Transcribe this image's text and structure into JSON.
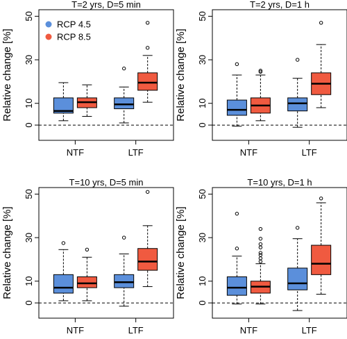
{
  "colors": {
    "rcp45": "#5b8fdb",
    "rcp85": "#f05a40",
    "median": "#000000",
    "zero_line": "#000000"
  },
  "legend": [
    {
      "name": "RCP 4.5",
      "color": "#5b8fdb"
    },
    {
      "name": "RCP 8.5",
      "color": "#f05a40"
    }
  ],
  "chart_data": [
    {
      "type": "boxplot",
      "title": "T=2 yrs, D=5 min",
      "ylabel": "Relative change [%]",
      "categories": [
        "NTF",
        "LTF"
      ],
      "yticks": [
        0,
        10,
        30,
        50
      ],
      "ylim": [
        -7,
        53
      ],
      "zero_line": true,
      "legend": "top-left",
      "series": [
        {
          "name": "RCP 4.5",
          "color": "#5b8fdb",
          "boxes": [
            {
              "category": "NTF",
              "whisker_low": 2,
              "q1": 5.5,
              "median": 6.5,
              "q3": 12.5,
              "whisker_high": 19.5,
              "outliers": []
            },
            {
              "category": "LTF",
              "whisker_low": 1,
              "q1": 7.5,
              "median": 9.5,
              "q3": 12.5,
              "whisker_high": 17.5,
              "outliers": [
                26
              ]
            }
          ]
        },
        {
          "name": "RCP 8.5",
          "color": "#f05a40",
          "boxes": [
            {
              "category": "NTF",
              "whisker_low": 4,
              "q1": 8,
              "median": 10.5,
              "q3": 12.5,
              "whisker_high": 18.5,
              "outliers": []
            },
            {
              "category": "LTF",
              "whisker_low": 10.5,
              "q1": 16,
              "median": 19.5,
              "q3": 24,
              "whisker_high": 32,
              "outliers": [
                35.5,
                47
              ]
            }
          ]
        }
      ]
    },
    {
      "type": "boxplot",
      "title": "T=2 yrs, D=1 h",
      "ylabel": "Relative change [%]",
      "categories": [
        "NTF",
        "LTF"
      ],
      "yticks": [
        0,
        10,
        30,
        50
      ],
      "ylim": [
        -7,
        53
      ],
      "zero_line": true,
      "series": [
        {
          "name": "RCP 4.5",
          "color": "#5b8fdb",
          "boxes": [
            {
              "category": "NTF",
              "whisker_low": -0.5,
              "q1": 4.5,
              "median": 7,
              "q3": 11.5,
              "whisker_high": 23,
              "outliers": [
                28
              ]
            },
            {
              "category": "LTF",
              "whisker_low": -1,
              "q1": 6.5,
              "median": 10,
              "q3": 12.5,
              "whisker_high": 21.5,
              "outliers": [
                30
              ]
            }
          ]
        },
        {
          "name": "RCP 8.5",
          "color": "#f05a40",
          "boxes": [
            {
              "category": "NTF",
              "whisker_low": 2,
              "q1": 5.5,
              "median": 9,
              "q3": 12.5,
              "whisker_high": 23,
              "outliers": [
                24.5,
                25
              ]
            },
            {
              "category": "LTF",
              "whisker_low": 8,
              "q1": 14,
              "median": 19,
              "q3": 24,
              "whisker_high": 37,
              "outliers": [
                47
              ]
            }
          ]
        }
      ]
    },
    {
      "type": "boxplot",
      "title": "T=10 yrs, D=5 min",
      "ylabel": "Relative change [%]",
      "categories": [
        "NTF",
        "LTF"
      ],
      "yticks": [
        0,
        10,
        30,
        50
      ],
      "ylim": [
        -7,
        53
      ],
      "zero_line": true,
      "series": [
        {
          "name": "RCP 4.5",
          "color": "#5b8fdb",
          "boxes": [
            {
              "category": "NTF",
              "whisker_low": 1,
              "q1": 4.5,
              "median": 7,
              "q3": 13,
              "whisker_high": 24.5,
              "outliers": [
                27.5
              ]
            },
            {
              "category": "LTF",
              "whisker_low": -1.5,
              "q1": 7,
              "median": 9.5,
              "q3": 13,
              "whisker_high": 22.5,
              "outliers": [
                30
              ]
            }
          ]
        },
        {
          "name": "RCP 8.5",
          "color": "#f05a40",
          "boxes": [
            {
              "category": "NTF",
              "whisker_low": 1,
              "q1": 7,
              "median": 9,
              "q3": 12,
              "whisker_high": 21,
              "outliers": [
                24.5
              ]
            },
            {
              "category": "LTF",
              "whisker_low": 7.5,
              "q1": 15,
              "median": 19,
              "q3": 25,
              "whisker_high": 35.5,
              "outliers": [
                51
              ]
            }
          ]
        }
      ]
    },
    {
      "type": "boxplot",
      "title": "T=10 yrs, D=1 h",
      "ylabel": "Relative change [%]",
      "categories": [
        "NTF",
        "LTF"
      ],
      "yticks": [
        0,
        10,
        30,
        50
      ],
      "ylim": [
        -7,
        53
      ],
      "zero_line": true,
      "series": [
        {
          "name": "RCP 4.5",
          "color": "#5b8fdb",
          "boxes": [
            {
              "category": "NTF",
              "whisker_low": -0.5,
              "q1": 3.5,
              "median": 7,
              "q3": 12,
              "whisker_high": 21.5,
              "outliers": [
                25,
                41
              ]
            },
            {
              "category": "LTF",
              "whisker_low": -3.5,
              "q1": 6,
              "median": 9,
              "q3": 16,
              "whisker_high": 29.5,
              "outliers": [
                34.5
              ]
            }
          ]
        },
        {
          "name": "RCP 8.5",
          "color": "#f05a40",
          "boxes": [
            {
              "category": "NTF",
              "whisker_low": -0.5,
              "q1": 4.5,
              "median": 7.5,
              "q3": 10,
              "whisker_high": 18,
              "outliers": [
                19,
                20.5,
                22,
                23,
                25.5,
                27,
                29.5,
                34
              ]
            },
            {
              "category": "LTF",
              "whisker_low": 4,
              "q1": 13,
              "median": 18,
              "q3": 26.5,
              "whisker_high": 46,
              "outliers": [
                48
              ]
            }
          ]
        }
      ]
    }
  ]
}
